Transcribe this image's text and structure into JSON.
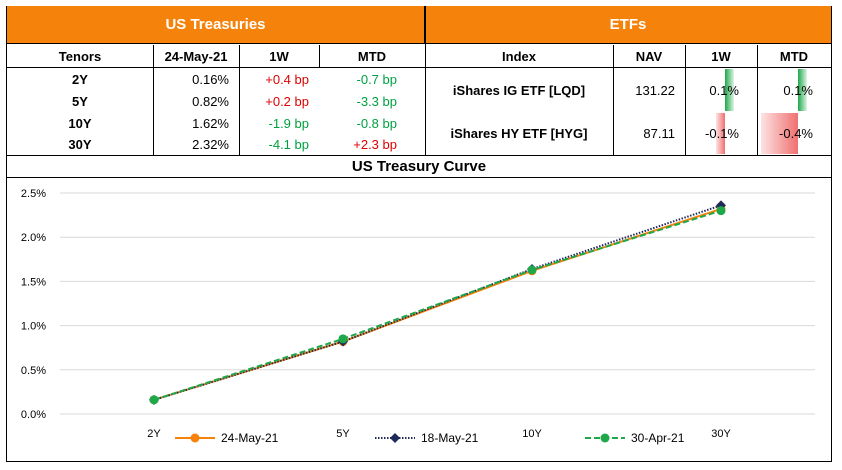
{
  "left_table": {
    "title": "US Treasuries",
    "headers": [
      "Tenors",
      "24-May-21",
      "1W",
      "MTD"
    ],
    "rows": [
      {
        "tenor": "2Y",
        "yield": "0.16%",
        "w1": "+0.4 bp",
        "mtd": "-0.7 bp",
        "w1_color": "red",
        "mtd_color": "green"
      },
      {
        "tenor": "5Y",
        "yield": "0.82%",
        "w1": "+0.2 bp",
        "mtd": "-3.3 bp",
        "w1_color": "red",
        "mtd_color": "green"
      },
      {
        "tenor": "10Y",
        "yield": "1.62%",
        "w1": "-1.9 bp",
        "mtd": "-0.8 bp",
        "w1_color": "green",
        "mtd_color": "green"
      },
      {
        "tenor": "30Y",
        "yield": "2.32%",
        "w1": "-4.1 bp",
        "mtd": "+2.3 bp",
        "w1_color": "green",
        "mtd_color": "red"
      }
    ]
  },
  "right_table": {
    "title": "ETFs",
    "headers": [
      "Index",
      "NAV",
      "1W",
      "MTD"
    ],
    "rows": [
      {
        "index": "iShares IG ETF [LQD]",
        "nav": "131.22",
        "w1": "0.1%",
        "mtd": "0.1%",
        "w1_value": 0.1,
        "mtd_value": 0.1
      },
      {
        "index": "iShares HY ETF [HYG]",
        "nav": "87.11",
        "w1": "-0.1%",
        "mtd": "-0.4%",
        "w1_value": -0.1,
        "mtd_value": -0.4
      }
    ]
  },
  "chart_data": {
    "type": "line",
    "title": "US Treasury Curve",
    "categories": [
      "2Y",
      "5Y",
      "10Y",
      "30Y"
    ],
    "ylim": [
      0,
      2.5
    ],
    "yticks": [
      "0.0%",
      "0.5%",
      "1.0%",
      "1.5%",
      "2.0%",
      "2.5%"
    ],
    "ytick_values": [
      0,
      0.5,
      1.0,
      1.5,
      2.0,
      2.5
    ],
    "grid": true,
    "legend_position": "bottom",
    "series": [
      {
        "name": "24-May-21",
        "values": [
          0.16,
          0.82,
          1.62,
          2.32
        ],
        "color": "#f5820a",
        "style": "solid",
        "marker": "circle"
      },
      {
        "name": "18-May-21",
        "values": [
          0.16,
          0.82,
          1.64,
          2.36
        ],
        "color": "#1f2a5a",
        "style": "dotted",
        "marker": "diamond"
      },
      {
        "name": "30-Apr-21",
        "values": [
          0.16,
          0.85,
          1.63,
          2.3
        ],
        "color": "#1fa84a",
        "style": "dashed",
        "marker": "circle"
      }
    ]
  }
}
